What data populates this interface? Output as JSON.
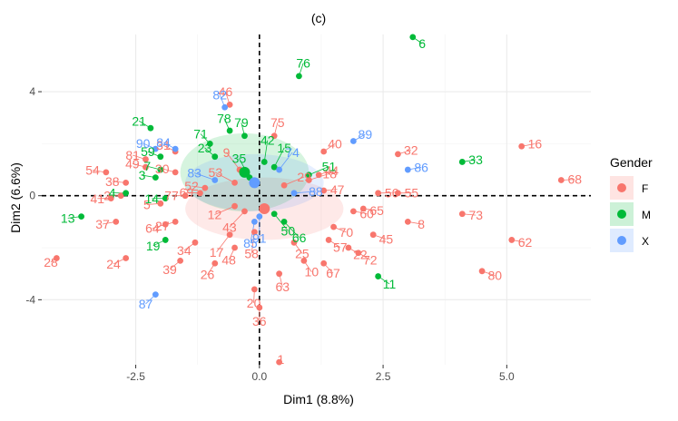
{
  "chart_data": {
    "type": "scatter",
    "title": "(c)",
    "xlabel": "Dim1 (8.8%)",
    "ylabel": "Dim2 (6.6%)",
    "xlim": [
      -4.4,
      6.7
    ],
    "ylim": [
      -6.5,
      6.2
    ],
    "xticks": [
      -2.5,
      0.0,
      2.5,
      5.0
    ],
    "xtick_labels": [
      "-2.5",
      "0.0",
      "2.5",
      "5.0"
    ],
    "yticks": [
      -4,
      0,
      4
    ],
    "ytick_labels": [
      "-4",
      "0",
      "4"
    ],
    "grid": true,
    "reference_lines": {
      "x": 0,
      "y": 0,
      "style": "dashed"
    },
    "legend": {
      "title": "Gender",
      "placement": "right",
      "entries": [
        {
          "label": "F",
          "color": "#F8766D"
        },
        {
          "label": "M",
          "color": "#00BA38"
        },
        {
          "label": "X",
          "color": "#619CFF"
        }
      ]
    },
    "centroids": [
      {
        "group": "F",
        "x": 0.1,
        "y": -0.5
      },
      {
        "group": "M",
        "x": -0.3,
        "y": 0.9
      },
      {
        "group": "X",
        "x": -0.1,
        "y": 0.5
      }
    ],
    "series": [
      {
        "name": "F",
        "color": "#F8766D",
        "points": [
          {
            "label": "1",
            "x": 0.4,
            "y": -6.4
          },
          {
            "label": "2",
            "x": -2.8,
            "y": 0.0
          },
          {
            "label": "5",
            "x": -2.0,
            "y": -0.3
          },
          {
            "label": "8",
            "x": 3.0,
            "y": -1.0
          },
          {
            "label": "9",
            "x": -0.4,
            "y": 1.0
          },
          {
            "label": "10",
            "x": 0.9,
            "y": -2.5
          },
          {
            "label": "12",
            "x": -0.5,
            "y": -0.4
          },
          {
            "label": "16",
            "x": 5.3,
            "y": 1.9
          },
          {
            "label": "17",
            "x": -0.6,
            "y": -1.5
          },
          {
            "label": "18",
            "x": 1.0,
            "y": 0.6
          },
          {
            "label": "20",
            "x": -0.1,
            "y": -3.6
          },
          {
            "label": "22",
            "x": 1.8,
            "y": -2.0
          },
          {
            "label": "24",
            "x": -2.7,
            "y": -2.4
          },
          {
            "label": "25",
            "x": 0.7,
            "y": -1.8
          },
          {
            "label": "26",
            "x": -0.9,
            "y": -2.6
          },
          {
            "label": "27",
            "x": -1.7,
            "y": -1.0
          },
          {
            "label": "28",
            "x": -4.1,
            "y": -2.4
          },
          {
            "label": "29",
            "x": 0.5,
            "y": 0.4
          },
          {
            "label": "30",
            "x": -1.7,
            "y": 0.9
          },
          {
            "label": "31",
            "x": -1.7,
            "y": 1.7
          },
          {
            "label": "32",
            "x": 2.8,
            "y": 1.6
          },
          {
            "label": "34",
            "x": -1.3,
            "y": -1.8
          },
          {
            "label": "36",
            "x": 0.0,
            "y": -4.3
          },
          {
            "label": "37",
            "x": -2.9,
            "y": -1.0
          },
          {
            "label": "38",
            "x": -2.7,
            "y": 0.5
          },
          {
            "label": "39",
            "x": -1.6,
            "y": -2.5
          },
          {
            "label": "40",
            "x": 1.3,
            "y": 1.7
          },
          {
            "label": "41",
            "x": -3.0,
            "y": -0.1
          },
          {
            "label": "43",
            "x": -0.3,
            "y": -0.6
          },
          {
            "label": "44",
            "x": 1.2,
            "y": 0.8
          },
          {
            "label": "45",
            "x": 2.3,
            "y": -1.5
          },
          {
            "label": "46",
            "x": -0.6,
            "y": 3.5
          },
          {
            "label": "47",
            "x": 1.3,
            "y": 0.2
          },
          {
            "label": "48",
            "x": -0.5,
            "y": -2.0
          },
          {
            "label": "49",
            "x": -2.3,
            "y": 1.1
          },
          {
            "label": "52",
            "x": -1.1,
            "y": 0.3
          },
          {
            "label": "53",
            "x": -0.5,
            "y": 0.5
          },
          {
            "label": "54",
            "x": -3.1,
            "y": 0.9
          },
          {
            "label": "55",
            "x": 2.8,
            "y": 0.1
          },
          {
            "label": "56",
            "x": 2.4,
            "y": 0.1
          },
          {
            "label": "57",
            "x": 1.4,
            "y": -1.7
          },
          {
            "label": "58",
            "x": -0.1,
            "y": -1.4
          },
          {
            "label": "60",
            "x": 1.9,
            "y": -0.6
          },
          {
            "label": "62",
            "x": 5.1,
            "y": -1.7
          },
          {
            "label": "63",
            "x": 0.4,
            "y": -3.0
          },
          {
            "label": "64",
            "x": -1.9,
            "y": -1.1
          },
          {
            "label": "65",
            "x": 2.1,
            "y": -0.5
          },
          {
            "label": "67",
            "x": 1.3,
            "y": -2.6
          },
          {
            "label": "68",
            "x": 6.1,
            "y": 0.6
          },
          {
            "label": "69",
            "x": -1.2,
            "y": 0.1
          },
          {
            "label": "70",
            "x": 1.5,
            "y": -1.2
          },
          {
            "label": "72",
            "x": 2.0,
            "y": -2.2
          },
          {
            "label": "73",
            "x": 4.1,
            "y": -0.7
          },
          {
            "label": "75",
            "x": 0.3,
            "y": 2.3
          },
          {
            "label": "77",
            "x": -1.5,
            "y": 0.0
          },
          {
            "label": "80",
            "x": 4.5,
            "y": -2.9
          },
          {
            "label": "81",
            "x": -2.3,
            "y": 1.4
          }
        ]
      },
      {
        "name": "M",
        "color": "#00BA38",
        "points": [
          {
            "label": "3",
            "x": -2.1,
            "y": 0.7
          },
          {
            "label": "4",
            "x": -2.7,
            "y": 0.1
          },
          {
            "label": "6",
            "x": 3.1,
            "y": 6.1
          },
          {
            "label": "7",
            "x": -2.0,
            "y": 1.0
          },
          {
            "label": "11",
            "x": 2.4,
            "y": -3.1
          },
          {
            "label": "13",
            "x": -3.6,
            "y": -0.8
          },
          {
            "label": "14",
            "x": -1.9,
            "y": -0.1
          },
          {
            "label": "15",
            "x": 0.3,
            "y": 1.1
          },
          {
            "label": "19",
            "x": -1.9,
            "y": -1.7
          },
          {
            "label": "21",
            "x": -2.2,
            "y": 2.6
          },
          {
            "label": "23",
            "x": -0.9,
            "y": 1.5
          },
          {
            "label": "33",
            "x": 4.1,
            "y": 1.3
          },
          {
            "label": "35",
            "x": -0.2,
            "y": 0.7
          },
          {
            "label": "42",
            "x": 0.1,
            "y": 1.3
          },
          {
            "label": "50",
            "x": 0.3,
            "y": -0.7
          },
          {
            "label": "51",
            "x": 1.0,
            "y": 0.8
          },
          {
            "label": "59",
            "x": -2.0,
            "y": 1.5
          },
          {
            "label": "66",
            "x": 0.5,
            "y": -1.0
          },
          {
            "label": "71",
            "x": -1.0,
            "y": 2.0
          },
          {
            "label": "76",
            "x": 0.8,
            "y": 4.6
          },
          {
            "label": "78",
            "x": -0.6,
            "y": 2.5
          },
          {
            "label": "79",
            "x": -0.3,
            "y": 2.3
          }
        ]
      },
      {
        "name": "X",
        "color": "#619CFF",
        "points": [
          {
            "label": "74",
            "x": 0.4,
            "y": 1.0
          },
          {
            "label": "82",
            "x": -0.7,
            "y": 3.4
          },
          {
            "label": "83",
            "x": -0.9,
            "y": 0.6
          },
          {
            "label": "84",
            "x": -1.7,
            "y": 1.8
          },
          {
            "label": "85",
            "x": -0.1,
            "y": -1.0
          },
          {
            "label": "86",
            "x": 3.0,
            "y": 1.0
          },
          {
            "label": "87",
            "x": -2.1,
            "y": -3.8
          },
          {
            "label": "88",
            "x": 0.7,
            "y": 0.1
          },
          {
            "label": "89",
            "x": 1.9,
            "y": 2.1
          },
          {
            "label": "90",
            "x": -2.1,
            "y": 1.8
          },
          {
            "label": "91",
            "x": 0.0,
            "y": -0.8
          }
        ]
      }
    ]
  }
}
